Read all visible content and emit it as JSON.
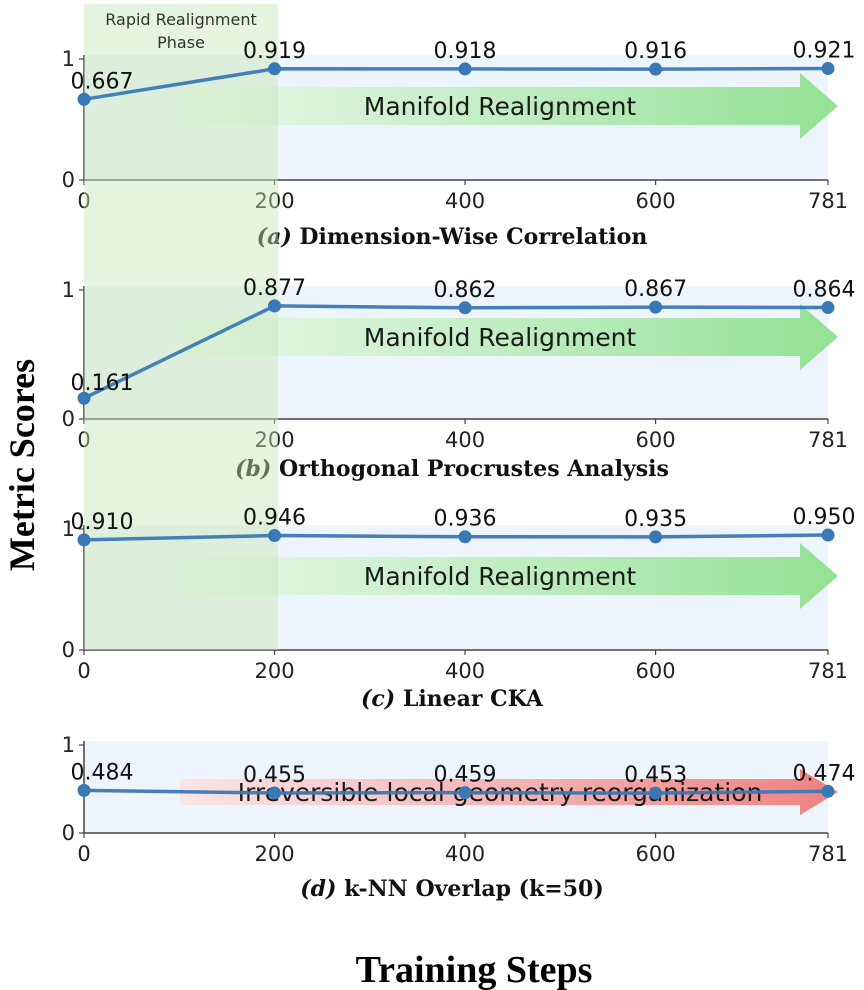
{
  "figure": {
    "y_axis_label": "Metric Scores",
    "x_axis_label": "Training Steps",
    "phase_label_line1": "Rapid Realignment",
    "phase_label_line2": "Phase",
    "colors": {
      "line": "#3a78b5",
      "realign_arrow": "#8fe08f",
      "reorg_arrow": "#ef7a7a",
      "phase_band": "#c8e6b8",
      "panel_bg": "#eef4fc"
    }
  },
  "chart_data": [
    {
      "type": "line",
      "panel_id": "a",
      "caption_letter": "(a)",
      "caption_title": "Dimension-Wise Correlation",
      "x": [
        0,
        200,
        400,
        600,
        781
      ],
      "x_ticks": [
        "0",
        "200",
        "400",
        "600",
        "781"
      ],
      "values": [
        0.667,
        0.919,
        0.918,
        0.916,
        0.921
      ],
      "labels": [
        "0.667",
        "0.919",
        "0.918",
        "0.916",
        "0.921"
      ],
      "ylim": [
        0,
        1
      ],
      "y_ticks": [
        "0",
        "1"
      ],
      "arrow_text": "Manifold Realignment",
      "arrow_kind": "realign",
      "phase_band": true
    },
    {
      "type": "line",
      "panel_id": "b",
      "caption_letter": "(b)",
      "caption_title": "Orthogonal Procrustes Analysis",
      "x": [
        0,
        200,
        400,
        600,
        781
      ],
      "x_ticks": [
        "0",
        "200",
        "400",
        "600",
        "781"
      ],
      "values": [
        0.161,
        0.877,
        0.862,
        0.867,
        0.864
      ],
      "labels": [
        "0.161",
        "0.877",
        "0.862",
        "0.867",
        "0.864"
      ],
      "ylim": [
        0,
        1
      ],
      "y_ticks": [
        "0",
        "1"
      ],
      "arrow_text": "Manifold Realignment",
      "arrow_kind": "realign",
      "phase_band": true
    },
    {
      "type": "line",
      "panel_id": "c",
      "caption_letter": "(c)",
      "caption_title": "Linear CKA",
      "x": [
        0,
        200,
        400,
        600,
        781
      ],
      "x_ticks": [
        "0",
        "200",
        "400",
        "600",
        "781"
      ],
      "values": [
        0.91,
        0.946,
        0.936,
        0.935,
        0.95
      ],
      "labels": [
        "0.910",
        "0.946",
        "0.936",
        "0.935",
        "0.950"
      ],
      "ylim": [
        0,
        1
      ],
      "y_ticks": [
        "0",
        "1"
      ],
      "arrow_text": "Manifold Realignment",
      "arrow_kind": "realign",
      "phase_band": true
    },
    {
      "type": "line",
      "panel_id": "d",
      "caption_letter": "(d)",
      "caption_title": "k-NN Overlap (k=50)",
      "x": [
        0,
        200,
        400,
        600,
        781
      ],
      "x_ticks": [
        "0",
        "200",
        "400",
        "600",
        "781"
      ],
      "values": [
        0.484,
        0.455,
        0.459,
        0.453,
        0.474
      ],
      "labels": [
        "0.484",
        "0.455",
        "0.459",
        "0.453",
        "0.474"
      ],
      "ylim": [
        0,
        1
      ],
      "y_ticks": [
        "0",
        "1"
      ],
      "arrow_text": "Irreversible local geometry reorganization",
      "arrow_kind": "reorg",
      "phase_band": false
    }
  ]
}
